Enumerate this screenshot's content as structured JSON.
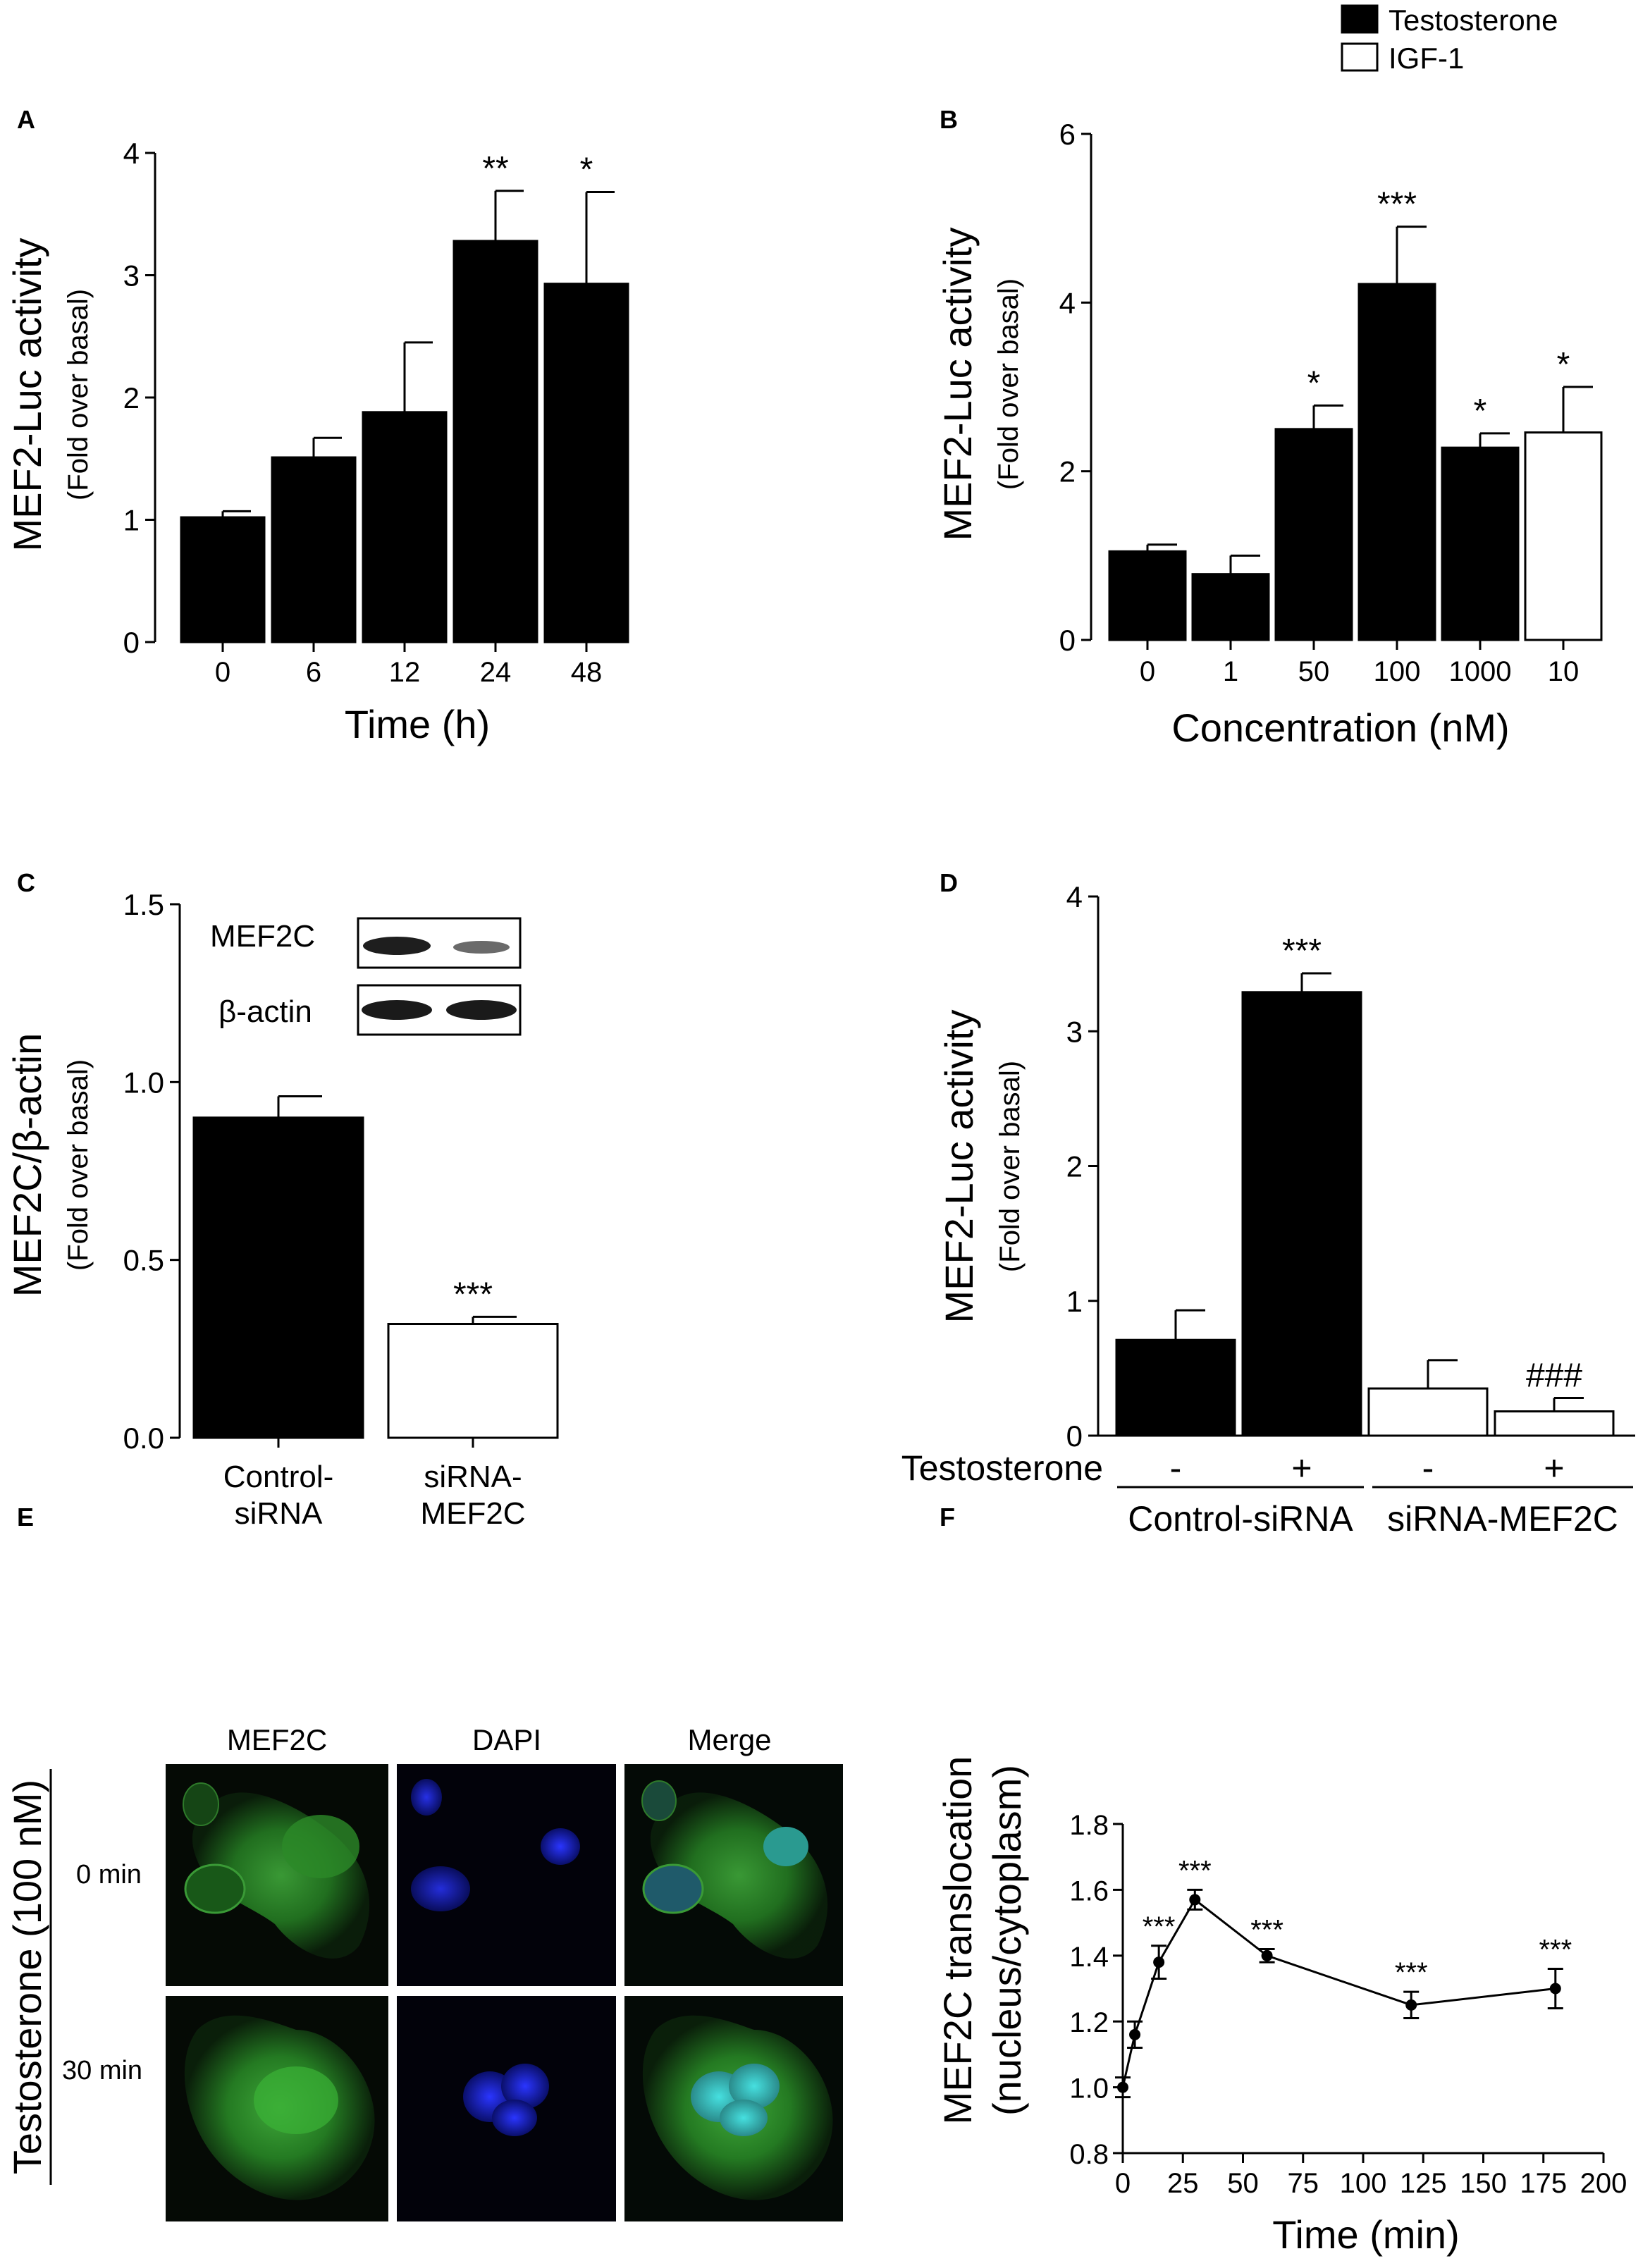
{
  "legend": {
    "entries": [
      {
        "label": "Testosterone",
        "color": "#000000"
      },
      {
        "label": "IGF-1",
        "color": "#ffffff"
      }
    ],
    "placement": "top-right"
  },
  "chart_data": [
    {
      "panel": "A",
      "type": "bar",
      "ylabel": "MEF2-Luc activity",
      "ysublabel": "(Fold over basal)",
      "xlabel": "Time (h)",
      "ylim": [
        0,
        4
      ],
      "yticks": [
        "0",
        "1",
        "2",
        "3",
        "4"
      ],
      "categories": [
        "0",
        "6",
        "12",
        "24",
        "48"
      ],
      "series": [
        {
          "values": [
            1.02,
            1.51,
            1.88,
            3.28,
            2.93
          ]
        }
      ],
      "errors": [
        0.05,
        0.16,
        0.57,
        0.41,
        0.75
      ],
      "fills": [
        "#000000",
        "#000000",
        "#000000",
        "#000000",
        "#000000"
      ],
      "annotations": [
        "",
        "",
        "",
        "**",
        "*"
      ]
    },
    {
      "panel": "B",
      "type": "bar",
      "ylabel": "MEF2-Luc activity",
      "ysublabel": "(Fold over basal)",
      "xlabel": "Concentration (nM)",
      "ylim": [
        0,
        6
      ],
      "yticks": [
        "0",
        "2",
        "4",
        "6"
      ],
      "categories": [
        "0",
        "1",
        "50",
        "100",
        "1000",
        "10"
      ],
      "series": [
        {
          "values": [
            1.05,
            0.78,
            2.5,
            4.22,
            2.28,
            2.46
          ]
        }
      ],
      "errors": [
        0.08,
        0.22,
        0.28,
        0.68,
        0.17,
        0.54
      ],
      "fills": [
        "#000000",
        "#000000",
        "#000000",
        "#000000",
        "#000000",
        "#ffffff"
      ],
      "annotations": [
        "",
        "",
        "*",
        "***",
        "*",
        "*"
      ]
    },
    {
      "panel": "C",
      "type": "bar",
      "ylabel": "MEF2C/β-actin",
      "ysublabel": "(Fold over basal)",
      "xlabel": "",
      "ylim": [
        0,
        1.5
      ],
      "yticks": [
        "0.0",
        "0.5",
        "1.0",
        "1.5"
      ],
      "categories": [
        [
          "Control-",
          "siRNA"
        ],
        [
          "siRNA-",
          "MEF2C"
        ]
      ],
      "series": [
        {
          "values": [
            0.9,
            0.32
          ]
        }
      ],
      "errors": [
        0.06,
        0.02
      ],
      "fills": [
        "#000000",
        "#ffffff"
      ],
      "annotations": [
        "",
        "***"
      ],
      "blot_labels": [
        "MEF2C",
        "β-actin"
      ]
    },
    {
      "panel": "D",
      "type": "bar",
      "ylabel": "MEF2-Luc activity",
      "ysublabel": "(Fold over basal)",
      "xlabel": "",
      "ylim": [
        0,
        4
      ],
      "yticks": [
        "0",
        "1",
        "2",
        "3",
        "4"
      ],
      "categories": [
        "-",
        "+",
        "-",
        "+"
      ],
      "series": [
        {
          "values": [
            0.71,
            3.29,
            0.35,
            0.18
          ]
        }
      ],
      "errors": [
        0.22,
        0.14,
        0.21,
        0.1
      ],
      "fills": [
        "#000000",
        "#000000",
        "#ffffff",
        "#ffffff"
      ],
      "annotations": [
        "",
        "***",
        "",
        "###"
      ],
      "treatment_label": "Testosterone",
      "groups": [
        "Control-siRNA",
        "siRNA-MEF2C"
      ]
    },
    {
      "panel": "F",
      "type": "line",
      "ylabel": [
        "MEF2C translocation",
        "(nucleus/cytoplasm)"
      ],
      "xlabel": "Time (min)",
      "xlim": [
        0,
        200
      ],
      "ylim": [
        0.8,
        1.8
      ],
      "xticks": [
        "0",
        "25",
        "50",
        "75",
        "100",
        "125",
        "150",
        "175",
        "200"
      ],
      "yticks": [
        "0.8",
        "1.0",
        "1.2",
        "1.4",
        "1.6",
        "1.8"
      ],
      "x": [
        0,
        5,
        15,
        30,
        60,
        120,
        180
      ],
      "y": [
        1.0,
        1.16,
        1.38,
        1.57,
        1.4,
        1.25,
        1.3
      ],
      "errors": [
        0.03,
        0.04,
        0.05,
        0.03,
        0.02,
        0.04,
        0.06
      ],
      "annotations": [
        "",
        "",
        "***",
        "***",
        "***",
        "***",
        "***"
      ]
    }
  ],
  "panel_e": {
    "letter": "E",
    "columns": [
      "MEF2C",
      "DAPI",
      "Merge"
    ],
    "rows": [
      "0 min",
      "30 min"
    ],
    "side_label": "Testosterone (100 nM)"
  }
}
